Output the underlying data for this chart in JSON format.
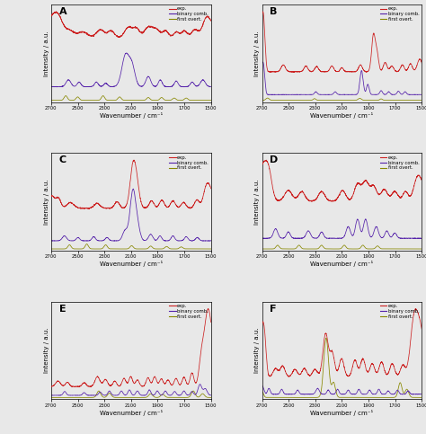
{
  "panels": [
    "A",
    "B",
    "C",
    "D",
    "E",
    "F"
  ],
  "colors": {
    "exp": "#cc2222",
    "binary": "#5522aa",
    "overtone": "#888800"
  },
  "xlabel": "Wavenumber / cm⁻¹",
  "ylabel": "Intensity / a.u.",
  "xmin": 1500,
  "xmax": 2700,
  "legend_labels": [
    "exp.",
    "binary comb.",
    "first overt."
  ],
  "bg_color": "#e8e8e8",
  "seed": 42
}
